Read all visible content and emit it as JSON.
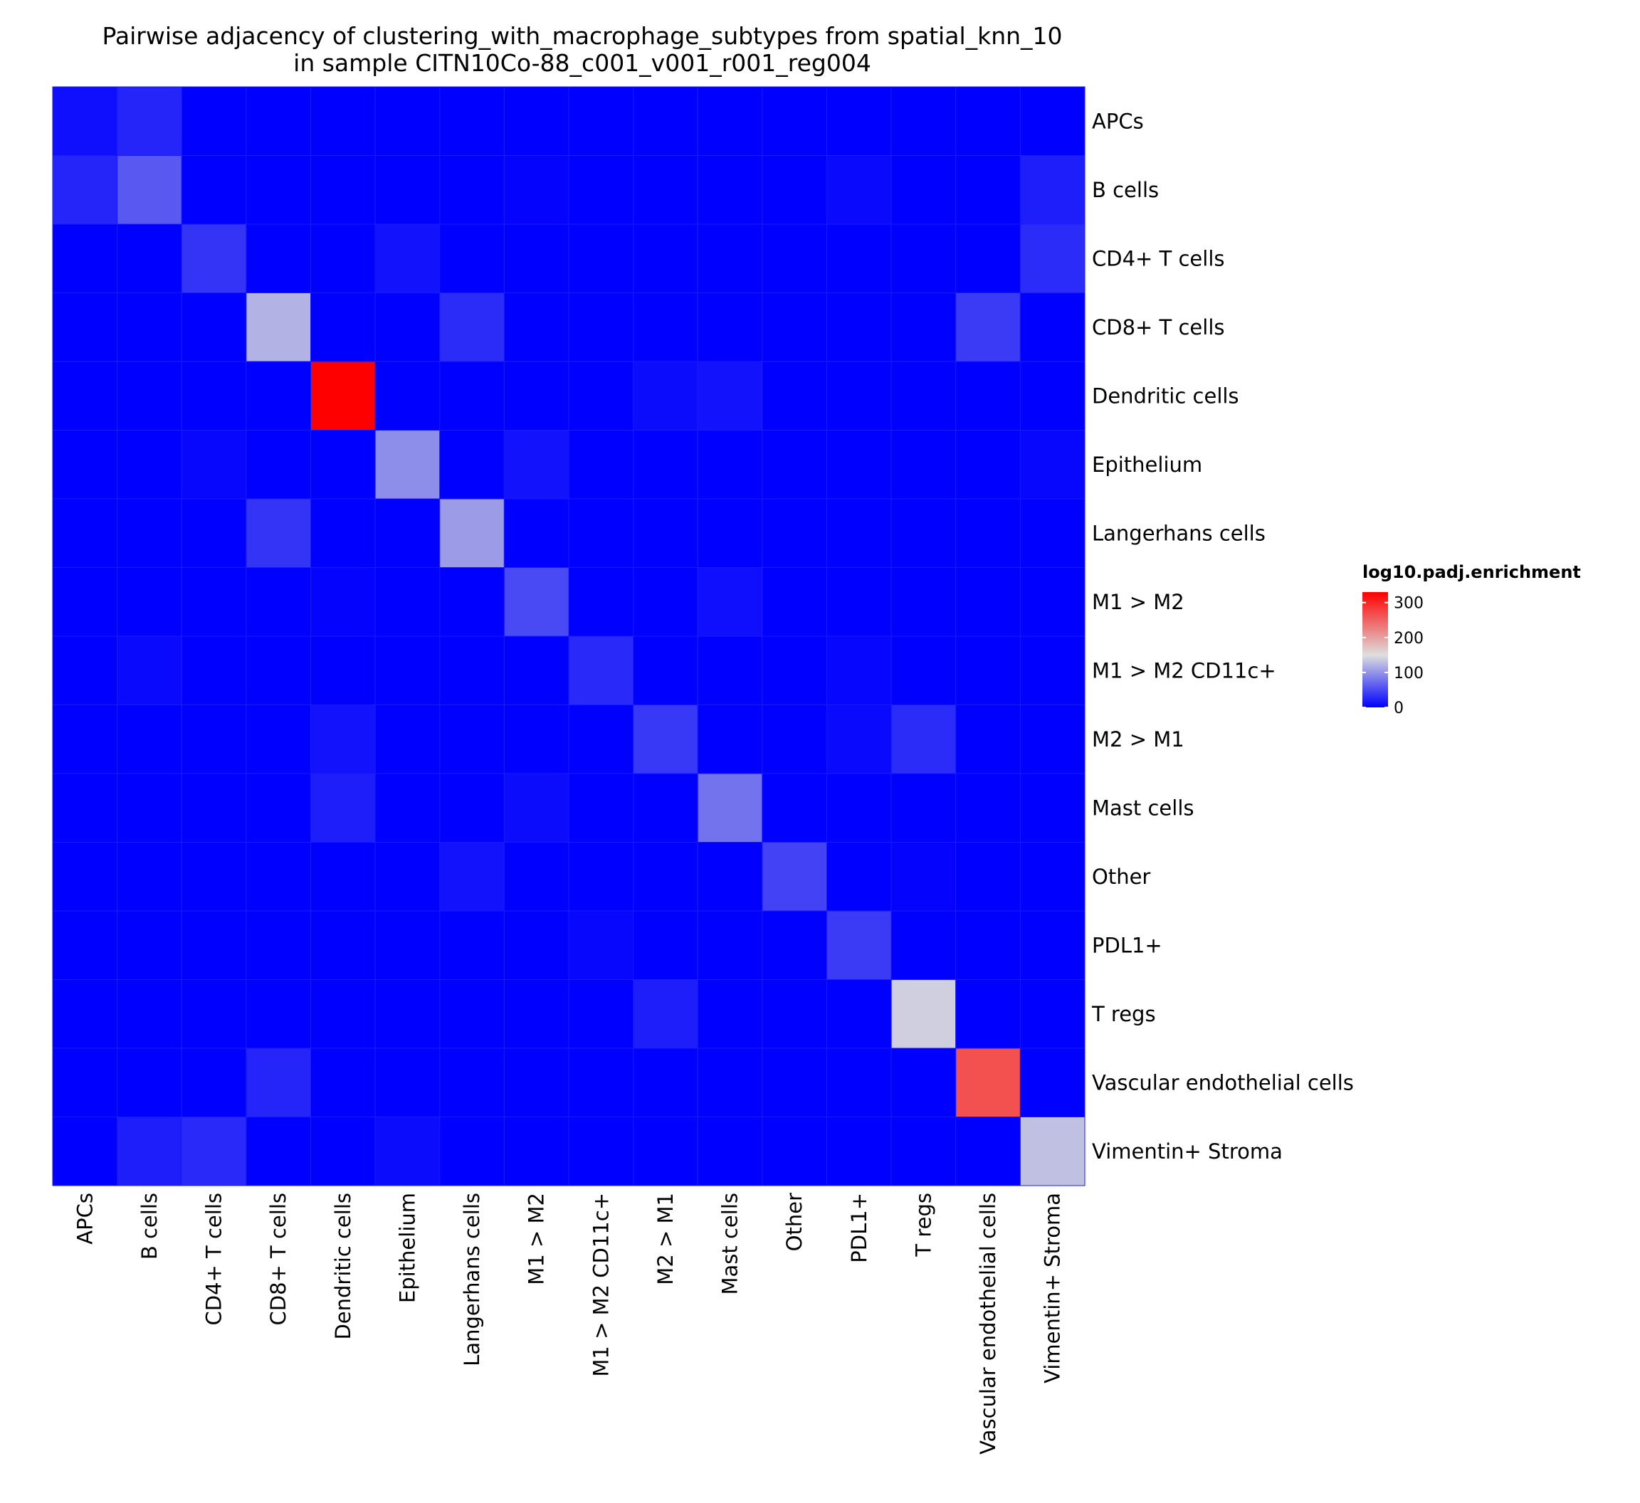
{
  "chart_data": {
    "type": "heatmap",
    "title": "Pairwise adjacency of clustering_with_macrophage_subtypes from spatial_knn_10",
    "subtitle": "in sample CITN10Co-88_c001_v001_r001_reg004",
    "rows": [
      "APCs",
      "B cells",
      "CD4+ T cells",
      "CD8+ T cells",
      "Dendritic cells",
      "Epithelium",
      "Langerhans cells",
      "M1 > M2",
      "M1 > M2 CD11c+",
      "M2 > M1",
      "Mast cells",
      "Other",
      "PDL1+",
      "T regs",
      "Vascular endothelial cells",
      "Vimentin+ Stroma"
    ],
    "columns": [
      "APCs",
      "B cells",
      "CD4+ T cells",
      "CD8+ T cells",
      "Dendritic cells",
      "Epithelium",
      "Langerhans cells",
      "M1 > M2",
      "M1 > M2 CD11c+",
      "M2 > M1",
      "Mast cells",
      "Other",
      "PDL1+",
      "T regs",
      "Vascular endothelial cells",
      "Vimentin+ Stroma"
    ],
    "values": [
      [
        10,
        25,
        0,
        0,
        0,
        0,
        0,
        0,
        0,
        0,
        0,
        0,
        0,
        0,
        0,
        0
      ],
      [
        25,
        60,
        0,
        0,
        0,
        0,
        0,
        3,
        0,
        0,
        0,
        0,
        6,
        0,
        0,
        20
      ],
      [
        0,
        0,
        35,
        0,
        0,
        12,
        0,
        0,
        0,
        0,
        0,
        0,
        0,
        0,
        0,
        30
      ],
      [
        0,
        0,
        0,
        120,
        0,
        0,
        30,
        0,
        0,
        0,
        0,
        0,
        0,
        0,
        40,
        0
      ],
      [
        0,
        0,
        0,
        0,
        330,
        0,
        0,
        0,
        0,
        8,
        12,
        0,
        0,
        0,
        0,
        0
      ],
      [
        0,
        0,
        5,
        0,
        0,
        95,
        0,
        12,
        0,
        0,
        0,
        0,
        0,
        0,
        0,
        5
      ],
      [
        0,
        0,
        0,
        35,
        0,
        0,
        105,
        0,
        0,
        0,
        0,
        0,
        0,
        0,
        0,
        0
      ],
      [
        0,
        0,
        0,
        0,
        3,
        0,
        0,
        50,
        0,
        0,
        10,
        0,
        0,
        0,
        0,
        0
      ],
      [
        0,
        6,
        0,
        0,
        0,
        0,
        0,
        0,
        28,
        0,
        0,
        0,
        4,
        0,
        0,
        0
      ],
      [
        0,
        0,
        0,
        0,
        12,
        0,
        0,
        0,
        0,
        38,
        0,
        0,
        6,
        30,
        0,
        0
      ],
      [
        0,
        0,
        0,
        0,
        20,
        0,
        0,
        8,
        0,
        0,
        78,
        0,
        0,
        0,
        0,
        0
      ],
      [
        0,
        0,
        0,
        0,
        0,
        0,
        12,
        0,
        0,
        0,
        0,
        45,
        0,
        3,
        0,
        0
      ],
      [
        0,
        0,
        0,
        0,
        0,
        0,
        0,
        0,
        5,
        0,
        0,
        0,
        40,
        0,
        0,
        0
      ],
      [
        0,
        0,
        0,
        0,
        0,
        0,
        0,
        0,
        0,
        20,
        0,
        0,
        0,
        140,
        0,
        0
      ],
      [
        0,
        0,
        0,
        25,
        0,
        0,
        0,
        0,
        0,
        0,
        0,
        0,
        0,
        0,
        265,
        0
      ],
      [
        0,
        20,
        28,
        0,
        0,
        8,
        0,
        0,
        0,
        0,
        0,
        0,
        0,
        0,
        0,
        130
      ]
    ],
    "legend": {
      "title": "log10.padj.enrichment",
      "ticks": [
        0,
        100,
        200,
        300
      ],
      "range": [
        0,
        330
      ],
      "colors": {
        "low": "#0000ff",
        "mid": "#dedede",
        "high": "#ff0000"
      },
      "midpoint": 150,
      "placement": "right"
    },
    "grid": false
  }
}
